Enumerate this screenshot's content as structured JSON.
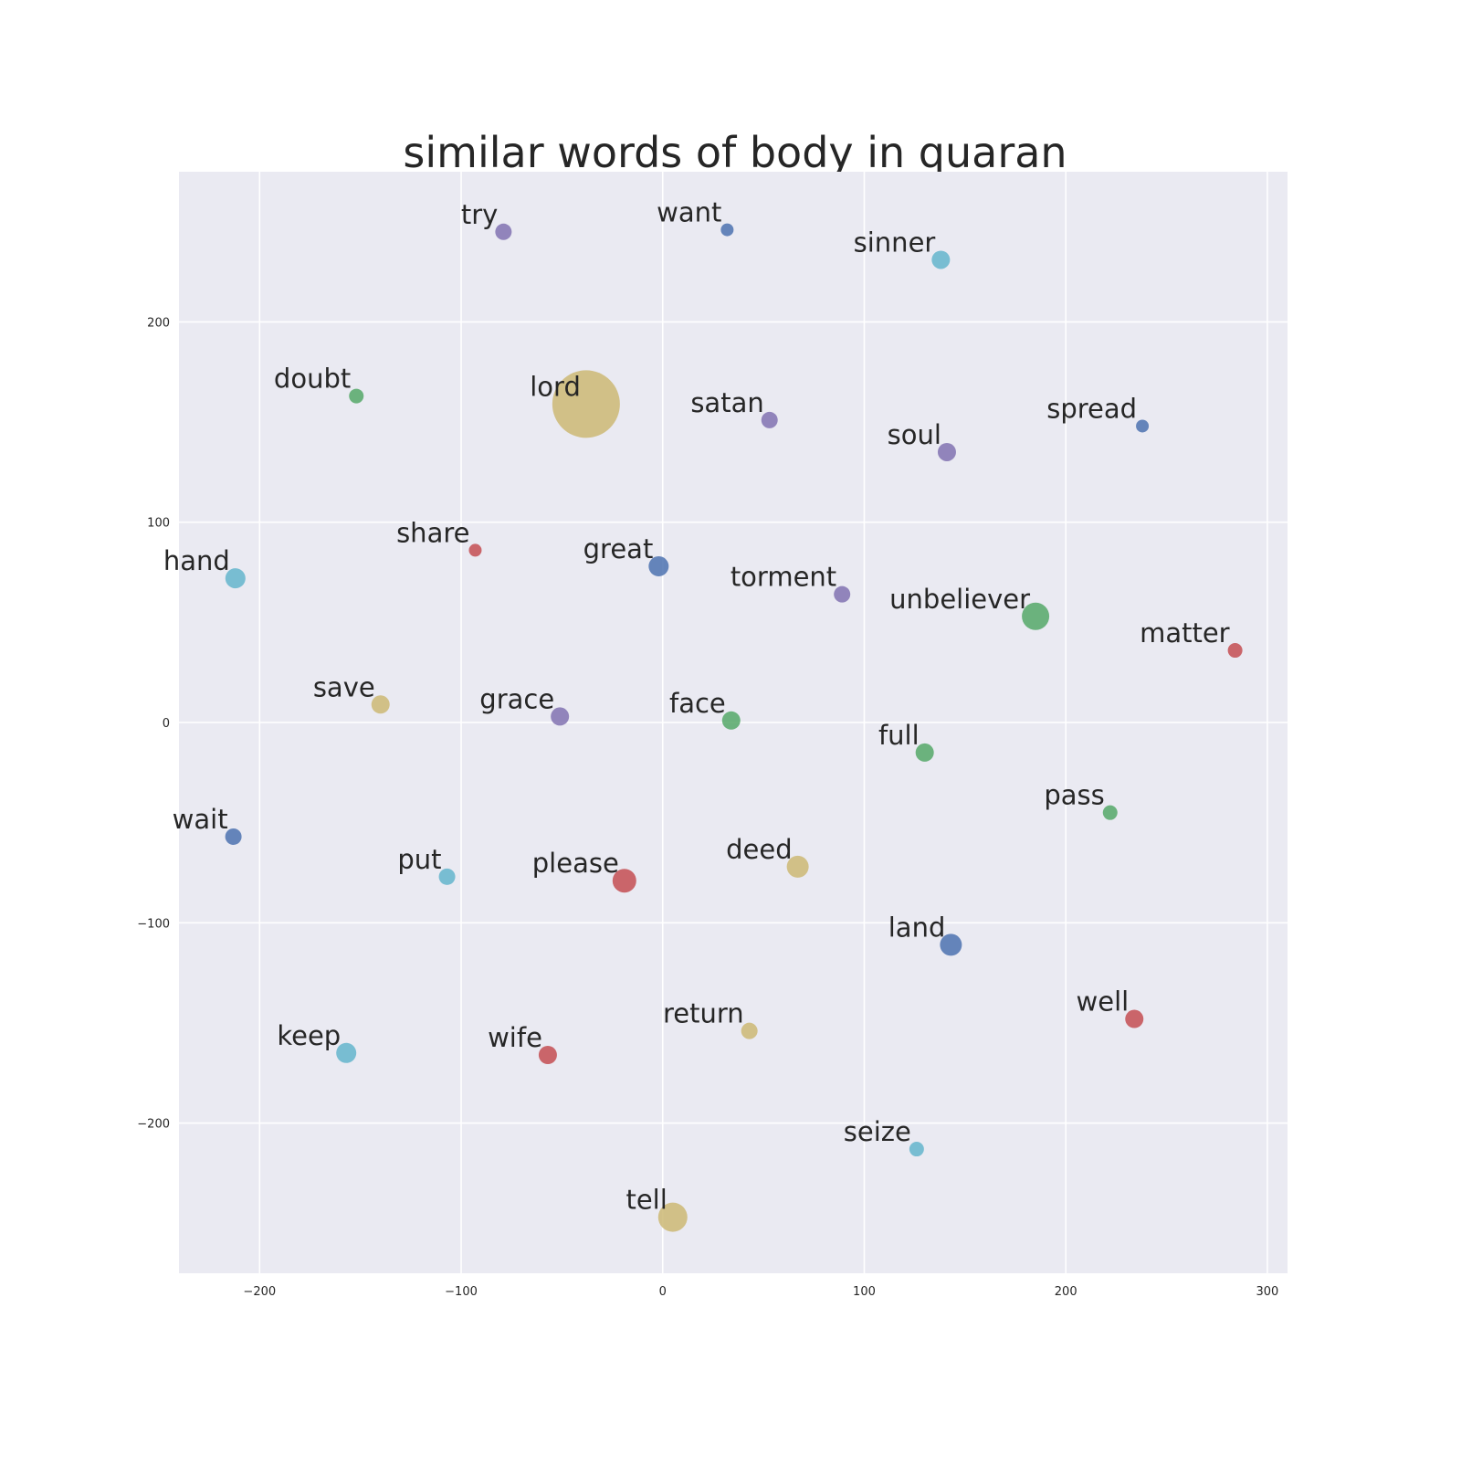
{
  "chart_data": {
    "type": "scatter",
    "title": "similar words of body in quaran",
    "xlabel": "",
    "ylabel": "",
    "xlim": [
      -240,
      310
    ],
    "ylim": [
      -275,
      275
    ],
    "x_ticks": [
      -200,
      -100,
      0,
      100,
      200,
      300
    ],
    "y_ticks": [
      -200,
      -100,
      0,
      100,
      200
    ],
    "x_tick_labels": [
      "−200",
      "−100",
      "0",
      "100",
      "200",
      "300"
    ],
    "y_tick_labels": [
      "−200",
      "−100",
      "0",
      "100",
      "200"
    ],
    "grid": true,
    "background": "#eaeaf2",
    "colors": {
      "blue": "#4c72b0",
      "green": "#55a868",
      "red": "#c44e52",
      "purple": "#8172b2",
      "yellow": "#ccb974",
      "cyan": "#64b5cd"
    },
    "points": [
      {
        "label": "try",
        "x": -79,
        "y": 245,
        "size": 9,
        "color": "purple"
      },
      {
        "label": "want",
        "x": 32,
        "y": 246,
        "size": 7,
        "color": "blue"
      },
      {
        "label": "sinner",
        "x": 138,
        "y": 231,
        "size": 10,
        "color": "cyan"
      },
      {
        "label": "doubt",
        "x": -152,
        "y": 163,
        "size": 8,
        "color": "green"
      },
      {
        "label": "lord",
        "x": -38,
        "y": 159,
        "size": 37,
        "color": "yellow"
      },
      {
        "label": "satan",
        "x": 53,
        "y": 151,
        "size": 9,
        "color": "purple"
      },
      {
        "label": "spread",
        "x": 238,
        "y": 148,
        "size": 7,
        "color": "blue"
      },
      {
        "label": "soul",
        "x": 141,
        "y": 135,
        "size": 10,
        "color": "purple"
      },
      {
        "label": "share",
        "x": -93,
        "y": 86,
        "size": 7,
        "color": "red"
      },
      {
        "label": "great",
        "x": -2,
        "y": 78,
        "size": 11,
        "color": "blue"
      },
      {
        "label": "hand",
        "x": -212,
        "y": 72,
        "size": 11,
        "color": "cyan"
      },
      {
        "label": "torment",
        "x": 89,
        "y": 64,
        "size": 9,
        "color": "purple"
      },
      {
        "label": "unbeliever",
        "x": 185,
        "y": 53,
        "size": 15,
        "color": "green"
      },
      {
        "label": "matter",
        "x": 284,
        "y": 36,
        "size": 8,
        "color": "red"
      },
      {
        "label": "save",
        "x": -140,
        "y": 9,
        "size": 10,
        "color": "yellow"
      },
      {
        "label": "grace",
        "x": -51,
        "y": 3,
        "size": 10,
        "color": "purple"
      },
      {
        "label": "face",
        "x": 34,
        "y": 1,
        "size": 10,
        "color": "green"
      },
      {
        "label": "full",
        "x": 130,
        "y": -15,
        "size": 10,
        "color": "green"
      },
      {
        "label": "pass",
        "x": 222,
        "y": -45,
        "size": 8,
        "color": "green"
      },
      {
        "label": "wait",
        "x": -213,
        "y": -57,
        "size": 9,
        "color": "blue"
      },
      {
        "label": "put",
        "x": -107,
        "y": -77,
        "size": 9,
        "color": "cyan"
      },
      {
        "label": "please",
        "x": -19,
        "y": -79,
        "size": 13,
        "color": "red"
      },
      {
        "label": "deed",
        "x": 67,
        "y": -72,
        "size": 12,
        "color": "yellow"
      },
      {
        "label": "land",
        "x": 143,
        "y": -111,
        "size": 12,
        "color": "blue"
      },
      {
        "label": "well",
        "x": 234,
        "y": -148,
        "size": 10,
        "color": "red"
      },
      {
        "label": "keep",
        "x": -157,
        "y": -165,
        "size": 11,
        "color": "cyan"
      },
      {
        "label": "wife",
        "x": -57,
        "y": -166,
        "size": 10,
        "color": "red"
      },
      {
        "label": "return",
        "x": 43,
        "y": -154,
        "size": 9,
        "color": "yellow"
      },
      {
        "label": "seize",
        "x": 126,
        "y": -213,
        "size": 8,
        "color": "cyan"
      },
      {
        "label": "tell",
        "x": 5,
        "y": -247,
        "size": 16,
        "color": "yellow"
      }
    ]
  }
}
